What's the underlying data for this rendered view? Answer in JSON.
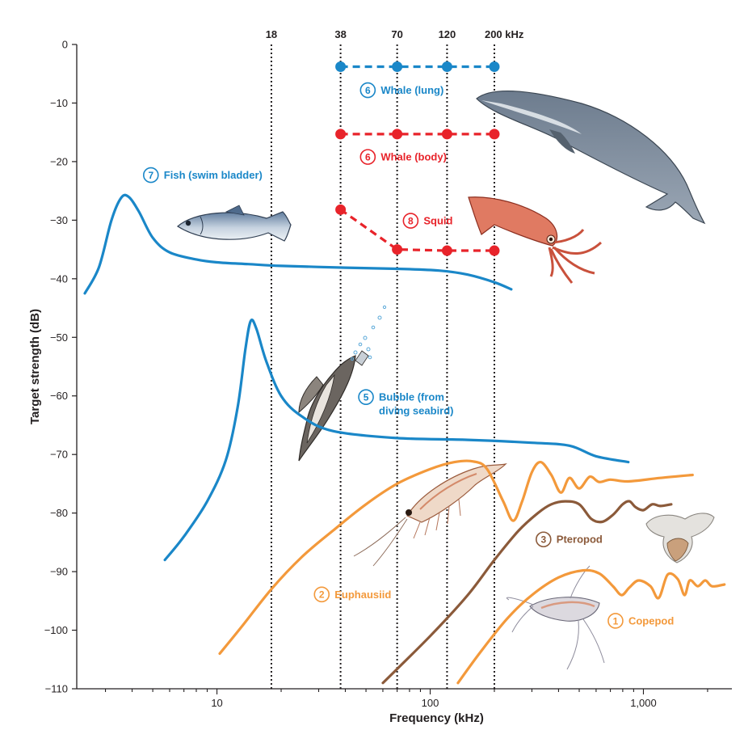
{
  "chart_data": {
    "type": "line",
    "title": "",
    "xlabel": "Frequency (kHz)",
    "ylabel": "Target strength (dB)",
    "xscale": "log",
    "xlim": [
      2.2,
      2600
    ],
    "ylim": [
      -110,
      0
    ],
    "x_ticks": [
      10,
      100,
      1000
    ],
    "x_tick_labels": [
      "10",
      "100",
      "1,000"
    ],
    "y_ticks": [
      0,
      -10,
      -20,
      -30,
      -40,
      -50,
      -60,
      -70,
      -80,
      -90,
      -100,
      -110
    ],
    "y_tick_labels": [
      "0",
      "−10",
      "−20",
      "−30",
      "−40",
      "−50",
      "−60",
      "−70",
      "−80",
      "−90",
      "−100",
      "−110"
    ],
    "echosounder_frequencies": [
      18,
      38,
      70,
      120,
      200
    ],
    "echosounder_labels": [
      "18",
      "38",
      "70",
      "120",
      "200 kHz"
    ],
    "colors": {
      "blue": "#1a87c8",
      "red": "#e8232a",
      "orange": "#f3993b",
      "brown": "#8b5a3a",
      "axis": "#231f20"
    },
    "series": [
      {
        "id": "7",
        "name": "Fish (swim bladder)",
        "color": "blue",
        "style": "solid",
        "legend_anchor": {
          "x": 4.9,
          "y": -22.3
        },
        "points": [
          [
            2.4,
            -42.5
          ],
          [
            2.8,
            -38
          ],
          [
            3.2,
            -30
          ],
          [
            3.55,
            -26.2
          ],
          [
            3.85,
            -26
          ],
          [
            4.3,
            -28.5
          ],
          [
            5,
            -33
          ],
          [
            6,
            -35.5
          ],
          [
            8,
            -36.7
          ],
          [
            10,
            -37.2
          ],
          [
            14,
            -37.5
          ],
          [
            20,
            -37.8
          ],
          [
            40,
            -38.1
          ],
          [
            70,
            -38.3
          ],
          [
            110,
            -38.6
          ],
          [
            150,
            -39.3
          ],
          [
            200,
            -40.6
          ],
          [
            240,
            -41.8
          ]
        ]
      },
      {
        "id": "5",
        "name": "Bubble (from\ndiving seabird)",
        "color": "blue",
        "style": "solid",
        "legend_anchor": {
          "x": 50,
          "y": -60.2
        },
        "points": [
          [
            5.7,
            -88
          ],
          [
            7,
            -84
          ],
          [
            9,
            -78
          ],
          [
            11,
            -71
          ],
          [
            12.5,
            -62
          ],
          [
            13.6,
            -52
          ],
          [
            14.4,
            -47.2
          ],
          [
            15.3,
            -48.5
          ],
          [
            17,
            -54
          ],
          [
            20,
            -60
          ],
          [
            25,
            -63.5
          ],
          [
            35,
            -66
          ],
          [
            70,
            -67.2
          ],
          [
            150,
            -67.5
          ],
          [
            300,
            -68
          ],
          [
            450,
            -68.5
          ],
          [
            600,
            -70.3
          ],
          [
            850,
            -71.3
          ]
        ]
      },
      {
        "id": "6",
        "name": "Whale (lung)",
        "color": "blue",
        "style": "dashed",
        "legend_anchor": {
          "x": 51,
          "y": -7.8
        },
        "points": [
          [
            38,
            -3.8
          ],
          [
            70,
            -3.8
          ],
          [
            120,
            -3.8
          ],
          [
            200,
            -3.8
          ]
        ]
      },
      {
        "id": "6",
        "name": "Whale (body)",
        "color": "red",
        "style": "dashed",
        "legend_anchor": {
          "x": 51,
          "y": -19.2
        },
        "points": [
          [
            38,
            -15.3
          ],
          [
            70,
            -15.3
          ],
          [
            120,
            -15.3
          ],
          [
            200,
            -15.3
          ]
        ]
      },
      {
        "id": "8",
        "name": "Squid",
        "color": "red",
        "style": "dashed",
        "legend_anchor": {
          "x": 81,
          "y": -30.1
        },
        "points": [
          [
            38,
            -28.2
          ],
          [
            70,
            -35
          ],
          [
            120,
            -35.2
          ],
          [
            200,
            -35.2
          ]
        ]
      },
      {
        "id": "2",
        "name": "Euphausiid",
        "color": "orange",
        "style": "solid",
        "legend_anchor": {
          "x": 31,
          "y": -93.9
        },
        "points": [
          [
            10.3,
            -104
          ],
          [
            13,
            -99.5
          ],
          [
            18,
            -93
          ],
          [
            25,
            -87.5
          ],
          [
            35,
            -83
          ],
          [
            50,
            -78.5
          ],
          [
            70,
            -75
          ],
          [
            100,
            -72.5
          ],
          [
            130,
            -71.3
          ],
          [
            160,
            -71.2
          ],
          [
            185,
            -72.5
          ],
          [
            220,
            -78
          ],
          [
            245,
            -81.3
          ],
          [
            270,
            -78
          ],
          [
            300,
            -73
          ],
          [
            330,
            -71.3
          ],
          [
            370,
            -73.5
          ],
          [
            410,
            -76.5
          ],
          [
            450,
            -74
          ],
          [
            500,
            -75.8
          ],
          [
            560,
            -73.8
          ],
          [
            620,
            -74.7
          ],
          [
            700,
            -74.3
          ],
          [
            850,
            -74.6
          ],
          [
            1200,
            -74
          ],
          [
            1700,
            -73.5
          ]
        ]
      },
      {
        "id": "3",
        "name": "Pteropod",
        "color": "brown",
        "style": "solid",
        "legend_anchor": {
          "x": 340,
          "y": -84.5
        },
        "points": [
          [
            60,
            -109
          ],
          [
            100,
            -101
          ],
          [
            150,
            -94
          ],
          [
            200,
            -88
          ],
          [
            260,
            -83
          ],
          [
            320,
            -80
          ],
          [
            370,
            -78.5
          ],
          [
            430,
            -78
          ],
          [
            500,
            -78.5
          ],
          [
            570,
            -81
          ],
          [
            640,
            -81.5
          ],
          [
            720,
            -80.3
          ],
          [
            800,
            -78.5
          ],
          [
            860,
            -78
          ],
          [
            920,
            -79
          ],
          [
            1000,
            -79.5
          ],
          [
            1100,
            -78.5
          ],
          [
            1200,
            -78.8
          ],
          [
            1350,
            -78.5
          ]
        ]
      },
      {
        "id": "1",
        "name": "Copepod",
        "color": "orange",
        "style": "solid",
        "legend_anchor": {
          "x": 740,
          "y": -98.4
        },
        "points": [
          [
            135,
            -109
          ],
          [
            170,
            -104
          ],
          [
            230,
            -98
          ],
          [
            300,
            -94
          ],
          [
            400,
            -91
          ],
          [
            520,
            -89.8
          ],
          [
            620,
            -90.3
          ],
          [
            720,
            -92.5
          ],
          [
            790,
            -94
          ],
          [
            860,
            -92.7
          ],
          [
            950,
            -91.5
          ],
          [
            1080,
            -92.5
          ],
          [
            1180,
            -94.5
          ],
          [
            1300,
            -90.5
          ],
          [
            1450,
            -91.3
          ],
          [
            1560,
            -94
          ],
          [
            1650,
            -91.5
          ],
          [
            1800,
            -92.5
          ],
          [
            1950,
            -91.5
          ],
          [
            2100,
            -92.5
          ],
          [
            2400,
            -92.2
          ]
        ]
      }
    ],
    "illustrations": [
      "whale",
      "fish",
      "squid",
      "seabird",
      "euphausiid",
      "pteropod",
      "copepod"
    ]
  }
}
